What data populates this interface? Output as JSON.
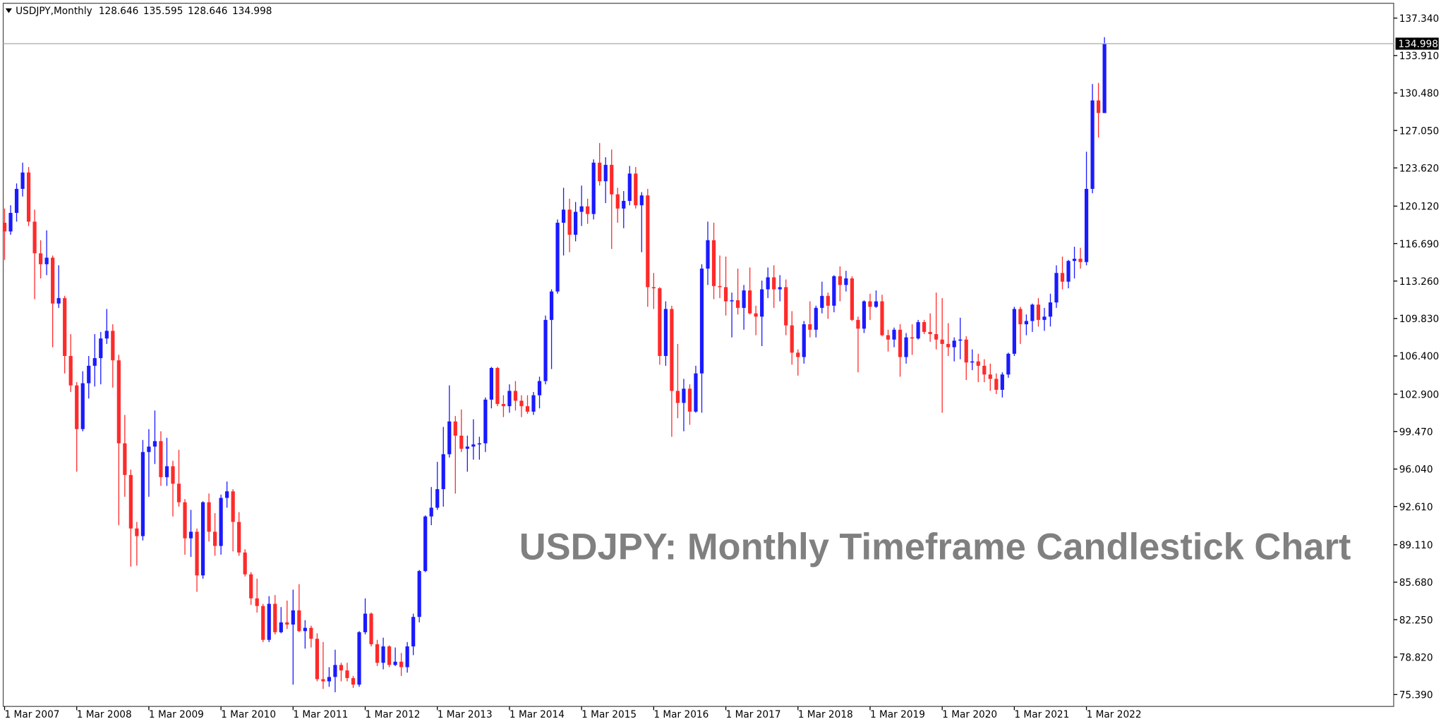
{
  "chart_data": {
    "type": "candlestick",
    "symbol": "USDJPY,Monthly",
    "title": "USDJPY: Monthly Timeframe Candlestick Chart",
    "up_color": "#1a1aff",
    "down_color": "#ff2a2a",
    "price_line_color": "#b0b0b0",
    "ylim": [
      74.3,
      138.7
    ],
    "yticks": [
      {
        "value": 137.34,
        "label": "137.340"
      },
      {
        "value": 133.91,
        "label": "133.910"
      },
      {
        "value": 130.48,
        "label": "130.480"
      },
      {
        "value": 127.05,
        "label": "127.050"
      },
      {
        "value": 123.62,
        "label": "123.620"
      },
      {
        "value": 120.12,
        "label": "120.120"
      },
      {
        "value": 116.69,
        "label": "116.690"
      },
      {
        "value": 113.26,
        "label": "113.260"
      },
      {
        "value": 109.83,
        "label": "109.830"
      },
      {
        "value": 106.4,
        "label": "106.400"
      },
      {
        "value": 102.9,
        "label": "102.900"
      },
      {
        "value": 99.47,
        "label": "99.470"
      },
      {
        "value": 96.04,
        "label": "96.040"
      },
      {
        "value": 92.61,
        "label": "92.610"
      },
      {
        "value": 89.11,
        "label": "89.110"
      },
      {
        "value": 85.68,
        "label": "85.680"
      },
      {
        "value": 82.25,
        "label": "82.250"
      },
      {
        "value": 78.82,
        "label": "78.820"
      },
      {
        "value": 75.39,
        "label": "75.390"
      }
    ],
    "xticks": [
      {
        "value": "2007-03",
        "label": "1 Mar 2007"
      },
      {
        "value": "2008-03",
        "label": "1 Mar 2008"
      },
      {
        "value": "2009-03",
        "label": "1 Mar 2009"
      },
      {
        "value": "2010-03",
        "label": "1 Mar 2010"
      },
      {
        "value": "2011-03",
        "label": "1 Mar 2011"
      },
      {
        "value": "2012-03",
        "label": "1 Mar 2012"
      },
      {
        "value": "2013-03",
        "label": "1 Mar 2013"
      },
      {
        "value": "2014-03",
        "label": "1 Mar 2014"
      },
      {
        "value": "2015-03",
        "label": "1 Mar 2015"
      },
      {
        "value": "2016-03",
        "label": "1 Mar 2016"
      },
      {
        "value": "2017-03",
        "label": "1 Mar 2017"
      },
      {
        "value": "2018-03",
        "label": "1 Mar 2018"
      },
      {
        "value": "2019-03",
        "label": "1 Mar 2019"
      },
      {
        "value": "2020-03",
        "label": "1 Mar 2020"
      },
      {
        "value": "2021-03",
        "label": "1 Mar 2021"
      },
      {
        "value": "2022-03",
        "label": "1 Mar 2022"
      }
    ],
    "x": [
      "2007-03",
      "2007-04",
      "2007-05",
      "2007-06",
      "2007-07",
      "2007-08",
      "2007-09",
      "2007-10",
      "2007-11",
      "2007-12",
      "2008-01",
      "2008-02",
      "2008-03",
      "2008-04",
      "2008-05",
      "2008-06",
      "2008-07",
      "2008-08",
      "2008-09",
      "2008-10",
      "2008-11",
      "2008-12",
      "2009-01",
      "2009-02",
      "2009-03",
      "2009-04",
      "2009-05",
      "2009-06",
      "2009-07",
      "2009-08",
      "2009-09",
      "2009-10",
      "2009-11",
      "2009-12",
      "2010-01",
      "2010-02",
      "2010-03",
      "2010-04",
      "2010-05",
      "2010-06",
      "2010-07",
      "2010-08",
      "2010-09",
      "2010-10",
      "2010-11",
      "2010-12",
      "2011-01",
      "2011-02",
      "2011-03",
      "2011-04",
      "2011-05",
      "2011-06",
      "2011-07",
      "2011-08",
      "2011-09",
      "2011-10",
      "2011-11",
      "2011-12",
      "2012-01",
      "2012-02",
      "2012-03",
      "2012-04",
      "2012-05",
      "2012-06",
      "2012-07",
      "2012-08",
      "2012-09",
      "2012-10",
      "2012-11",
      "2012-12",
      "2013-01",
      "2013-02",
      "2013-03",
      "2013-04",
      "2013-05",
      "2013-06",
      "2013-07",
      "2013-08",
      "2013-09",
      "2013-10",
      "2013-11",
      "2013-12",
      "2014-01",
      "2014-02",
      "2014-03",
      "2014-04",
      "2014-05",
      "2014-06",
      "2014-07",
      "2014-08",
      "2014-09",
      "2014-10",
      "2014-11",
      "2014-12",
      "2015-01",
      "2015-02",
      "2015-03",
      "2015-04",
      "2015-05",
      "2015-06",
      "2015-07",
      "2015-08",
      "2015-09",
      "2015-10",
      "2015-11",
      "2015-12",
      "2016-01",
      "2016-02",
      "2016-03",
      "2016-04",
      "2016-05",
      "2016-06",
      "2016-07",
      "2016-08",
      "2016-09",
      "2016-10",
      "2016-11",
      "2016-12",
      "2017-01",
      "2017-02",
      "2017-03",
      "2017-04",
      "2017-05",
      "2017-06",
      "2017-07",
      "2017-08",
      "2017-09",
      "2017-10",
      "2017-11",
      "2017-12",
      "2018-01",
      "2018-02",
      "2018-03",
      "2018-04",
      "2018-05",
      "2018-06",
      "2018-07",
      "2018-08",
      "2018-09",
      "2018-10",
      "2018-11",
      "2018-12",
      "2019-01",
      "2019-02",
      "2019-03",
      "2019-04",
      "2019-05",
      "2019-06",
      "2019-07",
      "2019-08",
      "2019-09",
      "2019-10",
      "2019-11",
      "2019-12",
      "2020-01",
      "2020-02",
      "2020-03",
      "2020-04",
      "2020-05",
      "2020-06",
      "2020-07",
      "2020-08",
      "2020-09",
      "2020-10",
      "2020-11",
      "2020-12",
      "2021-01",
      "2021-02",
      "2021-03",
      "2021-04",
      "2021-05",
      "2021-06",
      "2021-07",
      "2021-08",
      "2021-09",
      "2021-10",
      "2021-11",
      "2021-12",
      "2022-01",
      "2022-02",
      "2022-03",
      "2022-04",
      "2022-05",
      "2022-06"
    ],
    "ohlc": [
      [
        118.6,
        119.9,
        115.2,
        117.8
      ],
      [
        117.8,
        120.2,
        117.5,
        119.5
      ],
      [
        119.5,
        122.2,
        118.7,
        121.7
      ],
      [
        121.7,
        124.1,
        121.0,
        123.2
      ],
      [
        123.2,
        123.7,
        118.3,
        118.7
      ],
      [
        118.7,
        119.8,
        111.6,
        115.8
      ],
      [
        115.8,
        117.0,
        113.5,
        114.8
      ],
      [
        114.8,
        117.9,
        113.8,
        115.4
      ],
      [
        115.4,
        115.6,
        107.2,
        111.2
      ],
      [
        111.2,
        114.7,
        110.8,
        111.7
      ],
      [
        111.7,
        111.9,
        104.8,
        106.4
      ],
      [
        106.4,
        108.4,
        103.1,
        103.7
      ],
      [
        103.7,
        104.0,
        95.8,
        99.7
      ],
      [
        99.7,
        105.0,
        99.5,
        103.9
      ],
      [
        103.9,
        106.4,
        102.5,
        105.5
      ],
      [
        105.5,
        108.4,
        103.6,
        106.2
      ],
      [
        106.2,
        108.6,
        103.8,
        108.0
      ],
      [
        108.0,
        110.7,
        107.5,
        108.7
      ],
      [
        108.7,
        109.3,
        103.5,
        106.0
      ],
      [
        106.0,
        106.5,
        90.9,
        98.4
      ],
      [
        98.4,
        101.0,
        93.5,
        95.5
      ],
      [
        95.5,
        96.0,
        87.1,
        90.6
      ],
      [
        90.6,
        91.2,
        87.2,
        89.9
      ],
      [
        89.9,
        98.7,
        89.5,
        97.6
      ],
      [
        97.6,
        99.7,
        93.5,
        98.1
      ],
      [
        98.1,
        101.4,
        96.5,
        98.6
      ],
      [
        98.6,
        99.5,
        94.5,
        95.3
      ],
      [
        95.3,
        98.9,
        94.5,
        96.3
      ],
      [
        96.3,
        96.8,
        91.7,
        94.7
      ],
      [
        94.7,
        97.8,
        92.6,
        93.0
      ],
      [
        93.0,
        93.3,
        88.2,
        89.7
      ],
      [
        89.7,
        92.3,
        88.0,
        90.3
      ],
      [
        90.3,
        90.6,
        84.8,
        86.3
      ],
      [
        86.3,
        93.1,
        86.0,
        93.0
      ],
      [
        93.0,
        93.8,
        89.4,
        90.3
      ],
      [
        90.3,
        92.0,
        88.1,
        89.0
      ],
      [
        89.0,
        93.7,
        88.2,
        93.4
      ],
      [
        93.4,
        94.9,
        92.5,
        94.0
      ],
      [
        94.0,
        94.2,
        88.5,
        91.2
      ],
      [
        91.2,
        92.1,
        88.1,
        88.4
      ],
      [
        88.4,
        88.7,
        86.2,
        86.4
      ],
      [
        86.4,
        86.6,
        83.6,
        84.2
      ],
      [
        84.2,
        86.0,
        82.9,
        83.5
      ],
      [
        83.5,
        83.7,
        80.2,
        80.4
      ],
      [
        80.4,
        84.4,
        80.2,
        83.7
      ],
      [
        83.7,
        84.5,
        80.9,
        81.1
      ],
      [
        81.1,
        83.4,
        81.0,
        82.0
      ],
      [
        82.0,
        84.0,
        81.4,
        81.8
      ],
      [
        81.8,
        85.0,
        76.3,
        83.1
      ],
      [
        83.1,
        85.5,
        81.1,
        81.2
      ],
      [
        81.2,
        82.2,
        79.6,
        81.5
      ],
      [
        81.5,
        81.7,
        79.7,
        80.5
      ],
      [
        80.5,
        81.0,
        76.6,
        76.8
      ],
      [
        76.8,
        80.2,
        75.9,
        76.6
      ],
      [
        76.6,
        77.9,
        76.1,
        77.0
      ],
      [
        77.0,
        79.5,
        75.6,
        78.1
      ],
      [
        78.1,
        78.3,
        76.6,
        77.6
      ],
      [
        77.6,
        78.3,
        76.6,
        76.9
      ],
      [
        76.9,
        77.1,
        76.0,
        76.3
      ],
      [
        76.3,
        81.2,
        76.1,
        81.1
      ],
      [
        81.1,
        84.2,
        80.9,
        82.8
      ],
      [
        82.8,
        82.9,
        79.8,
        80.0
      ],
      [
        80.0,
        80.4,
        78.0,
        78.3
      ],
      [
        78.3,
        80.6,
        77.7,
        79.8
      ],
      [
        79.8,
        79.9,
        77.9,
        78.1
      ],
      [
        78.1,
        79.7,
        78.0,
        78.4
      ],
      [
        78.4,
        79.2,
        77.1,
        77.9
      ],
      [
        77.9,
        80.2,
        77.4,
        79.8
      ],
      [
        79.8,
        82.8,
        79.0,
        82.5
      ],
      [
        82.5,
        86.8,
        82.0,
        86.7
      ],
      [
        86.7,
        91.8,
        86.6,
        91.7
      ],
      [
        91.7,
        94.4,
        90.9,
        92.5
      ],
      [
        92.5,
        96.7,
        92.3,
        94.2
      ],
      [
        94.2,
        99.9,
        92.6,
        97.4
      ],
      [
        97.4,
        103.7,
        97.1,
        100.4
      ],
      [
        100.4,
        100.9,
        93.8,
        99.1
      ],
      [
        99.1,
        101.5,
        97.6,
        97.9
      ],
      [
        97.9,
        99.1,
        95.8,
        98.1
      ],
      [
        98.1,
        100.6,
        96.9,
        98.3
      ],
      [
        98.3,
        99.0,
        96.9,
        98.4
      ],
      [
        98.4,
        102.6,
        97.6,
        102.4
      ],
      [
        102.4,
        105.4,
        101.6,
        105.3
      ],
      [
        105.3,
        105.4,
        101.8,
        102.0
      ],
      [
        102.0,
        102.8,
        100.8,
        101.8
      ],
      [
        101.8,
        103.8,
        101.2,
        103.2
      ],
      [
        103.2,
        104.1,
        101.4,
        102.3
      ],
      [
        102.3,
        102.8,
        100.8,
        101.8
      ],
      [
        101.8,
        102.8,
        101.1,
        101.3
      ],
      [
        101.3,
        103.1,
        101.0,
        102.8
      ],
      [
        102.8,
        104.5,
        101.6,
        104.1
      ],
      [
        104.1,
        110.1,
        103.8,
        109.7
      ],
      [
        109.7,
        112.5,
        105.2,
        112.3
      ],
      [
        112.3,
        118.9,
        112.1,
        118.6
      ],
      [
        118.6,
        121.8,
        115.6,
        119.8
      ],
      [
        119.8,
        120.8,
        115.9,
        117.5
      ],
      [
        117.5,
        120.5,
        116.9,
        119.6
      ],
      [
        119.6,
        122.0,
        118.3,
        120.1
      ],
      [
        120.1,
        120.8,
        118.5,
        119.4
      ],
      [
        119.4,
        124.4,
        118.9,
        124.1
      ],
      [
        124.1,
        125.9,
        122.0,
        122.4
      ],
      [
        122.4,
        124.6,
        120.4,
        123.9
      ],
      [
        123.9,
        125.3,
        116.2,
        121.2
      ],
      [
        121.2,
        121.8,
        118.6,
        119.9
      ],
      [
        119.9,
        121.5,
        118.1,
        120.6
      ],
      [
        120.6,
        123.8,
        120.2,
        123.1
      ],
      [
        123.1,
        123.7,
        119.9,
        120.2
      ],
      [
        120.2,
        121.4,
        115.9,
        121.1
      ],
      [
        121.1,
        121.7,
        110.9,
        112.7
      ],
      [
        112.7,
        114.0,
        110.7,
        112.6
      ],
      [
        112.6,
        112.7,
        105.6,
        106.4
      ],
      [
        106.4,
        111.4,
        105.5,
        110.7
      ],
      [
        110.7,
        111.0,
        99.0,
        103.2
      ],
      [
        103.2,
        107.5,
        100.7,
        102.1
      ],
      [
        102.1,
        104.3,
        99.5,
        103.4
      ],
      [
        103.4,
        103.8,
        100.1,
        101.3
      ],
      [
        101.3,
        105.5,
        101.2,
        104.8
      ],
      [
        104.8,
        114.8,
        101.2,
        114.4
      ],
      [
        114.4,
        118.7,
        112.9,
        117.0
      ],
      [
        117.0,
        118.6,
        111.6,
        112.8
      ],
      [
        112.8,
        115.6,
        111.7,
        112.7
      ],
      [
        112.7,
        115.5,
        110.1,
        111.4
      ],
      [
        111.4,
        112.2,
        108.1,
        111.5
      ],
      [
        111.5,
        114.4,
        110.2,
        110.8
      ],
      [
        110.8,
        112.9,
        108.8,
        112.4
      ],
      [
        112.4,
        114.5,
        110.2,
        110.3
      ],
      [
        110.3,
        111.0,
        108.3,
        110.0
      ],
      [
        110.0,
        113.3,
        107.3,
        112.5
      ],
      [
        112.5,
        114.5,
        111.7,
        113.6
      ],
      [
        113.6,
        114.7,
        110.8,
        112.5
      ],
      [
        112.5,
        113.8,
        111.4,
        112.7
      ],
      [
        112.7,
        113.4,
        108.3,
        109.2
      ],
      [
        109.2,
        110.5,
        105.6,
        106.7
      ],
      [
        106.7,
        107.0,
        104.6,
        106.3
      ],
      [
        106.3,
        109.6,
        105.7,
        109.3
      ],
      [
        109.3,
        111.4,
        108.1,
        108.8
      ],
      [
        108.8,
        111.0,
        108.1,
        110.8
      ],
      [
        110.8,
        113.2,
        110.3,
        111.9
      ],
      [
        111.9,
        112.2,
        109.8,
        111.0
      ],
      [
        111.0,
        113.8,
        110.4,
        113.7
      ],
      [
        113.7,
        114.6,
        111.4,
        112.9
      ],
      [
        112.9,
        114.2,
        112.3,
        113.5
      ],
      [
        113.5,
        113.7,
        109.6,
        109.7
      ],
      [
        109.7,
        110.0,
        104.9,
        108.9
      ],
      [
        108.9,
        111.5,
        108.5,
        111.4
      ],
      [
        111.4,
        112.1,
        109.7,
        110.9
      ],
      [
        110.9,
        112.4,
        110.8,
        111.4
      ],
      [
        111.4,
        112.0,
        108.2,
        108.3
      ],
      [
        108.3,
        108.8,
        106.8,
        107.9
      ],
      [
        107.9,
        109.0,
        107.2,
        108.8
      ],
      [
        108.8,
        109.3,
        104.5,
        106.3
      ],
      [
        106.3,
        108.5,
        105.7,
        108.1
      ],
      [
        108.1,
        109.3,
        106.5,
        108.0
      ],
      [
        108.0,
        109.7,
        107.9,
        109.5
      ],
      [
        109.5,
        109.7,
        108.4,
        108.6
      ],
      [
        108.6,
        110.3,
        107.7,
        108.4
      ],
      [
        108.4,
        112.2,
        107.0,
        107.9
      ],
      [
        107.9,
        111.7,
        101.2,
        107.5
      ],
      [
        107.5,
        109.4,
        106.4,
        107.2
      ],
      [
        107.2,
        108.1,
        105.9,
        107.8
      ],
      [
        107.8,
        109.9,
        106.1,
        107.9
      ],
      [
        107.9,
        108.2,
        104.2,
        105.8
      ],
      [
        105.8,
        107.0,
        105.1,
        105.9
      ],
      [
        105.9,
        106.6,
        104.0,
        105.5
      ],
      [
        105.5,
        106.1,
        104.0,
        104.7
      ],
      [
        104.7,
        105.7,
        103.2,
        104.3
      ],
      [
        104.3,
        104.8,
        102.9,
        103.3
      ],
      [
        103.3,
        104.9,
        102.6,
        104.7
      ],
      [
        104.7,
        106.7,
        104.4,
        106.6
      ],
      [
        106.6,
        110.9,
        106.4,
        110.7
      ],
      [
        110.7,
        110.9,
        107.5,
        109.3
      ],
      [
        109.3,
        110.2,
        108.3,
        109.6
      ],
      [
        109.6,
        111.2,
        108.6,
        111.1
      ],
      [
        111.1,
        111.7,
        109.1,
        109.7
      ],
      [
        109.7,
        110.8,
        108.7,
        110.0
      ],
      [
        110.0,
        112.1,
        109.1,
        111.3
      ],
      [
        111.3,
        114.7,
        110.8,
        114.0
      ],
      [
        114.0,
        115.5,
        112.5,
        113.2
      ],
      [
        113.2,
        115.2,
        112.6,
        115.1
      ],
      [
        115.1,
        116.4,
        113.5,
        115.3
      ],
      [
        115.3,
        116.3,
        114.4,
        115.0
      ],
      [
        115.0,
        125.1,
        114.7,
        121.7
      ],
      [
        121.7,
        131.3,
        121.3,
        129.8
      ],
      [
        129.8,
        131.4,
        126.4,
        128.646
      ],
      [
        128.646,
        135.595,
        128.646,
        134.998
      ]
    ]
  }
}
